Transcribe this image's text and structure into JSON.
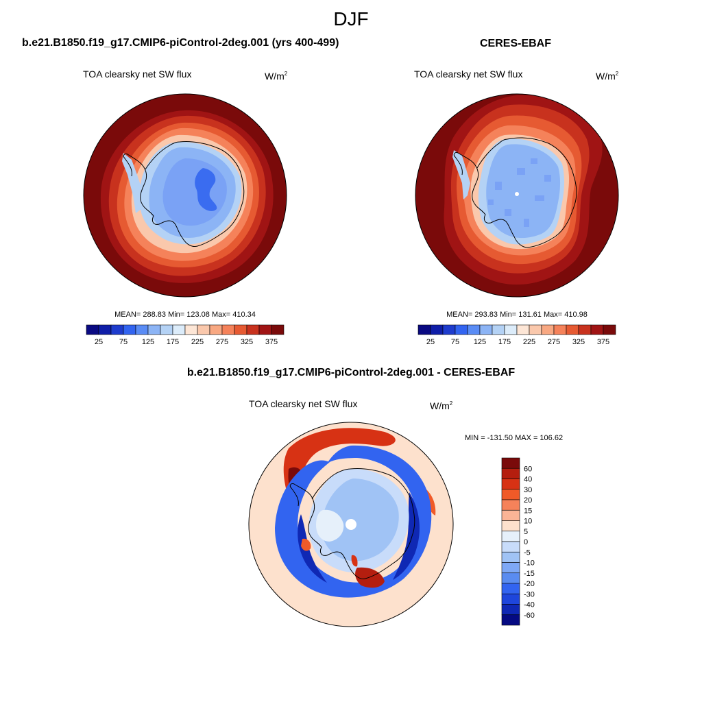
{
  "page": {
    "title": "DJF"
  },
  "panels": [
    {
      "title": "b.e21.B1850.f19_g17.CMIP6-piControl-2deg.001 (yrs 400-499)",
      "variable": "TOA clearsky net SW flux",
      "unit_base": "W/m",
      "unit_exp": "2",
      "stats": "MEAN= 288.83  Min= 123.08  Max= 410.34"
    },
    {
      "title": "CERES-EBAF",
      "variable": "TOA clearsky net SW flux",
      "unit_base": "W/m",
      "unit_exp": "2",
      "stats": "MEAN= 293.83  Min= 131.61  Max= 410.98"
    },
    {
      "title": "b.e21.B1850.f19_g17.CMIP6-piControl-2deg.001 - CERES-EBAF",
      "variable": "TOA clearsky net SW flux",
      "unit_base": "W/m",
      "unit_exp": "2",
      "stats": "MIN = -131.50 MAX = 106.62"
    }
  ],
  "colorbars": {
    "absolute": {
      "colors": [
        "#0a0a82",
        "#0f1ea8",
        "#1e3ccd",
        "#3264f0",
        "#5a8cf5",
        "#8cb4f5",
        "#b4d2f5",
        "#dcecfa",
        "#fde6d6",
        "#fac8ac",
        "#f8a882",
        "#f5825a",
        "#e65a32",
        "#c8321e",
        "#a01414",
        "#7a0a0a"
      ],
      "labels": [
        "25",
        "75",
        "125",
        "175",
        "225",
        "275",
        "325",
        "375"
      ]
    },
    "difference": {
      "colors": [
        "#7a0a0a",
        "#b41e0f",
        "#d73214",
        "#f05a28",
        "#f5825a",
        "#fab496",
        "#fde1cd",
        "#e6f0fa",
        "#c8dcfa",
        "#a0c3f5",
        "#7ea8f5",
        "#5a8cf0",
        "#3264f0",
        "#1e46dc",
        "#0f28b4",
        "#050a82"
      ],
      "labels": [
        "60",
        "40",
        "30",
        "20",
        "15",
        "10",
        "5",
        "0",
        "-5",
        "-10",
        "-15",
        "-20",
        "-30",
        "-40",
        "-60"
      ]
    }
  },
  "maps": {
    "map1": {
      "ring_colors": [
        "#7a0a0a",
        "#a01414",
        "#c8321e",
        "#e65a32",
        "#f5825a",
        "#fac8ac",
        "#fde6d6"
      ],
      "ice_colors": [
        "#b4d2f5",
        "#8cb4f5",
        "#7aa2f5",
        "#5a8cf5"
      ],
      "core": "#3a6cf0",
      "coast": "#000000"
    },
    "map2": {
      "ring_colors": [
        "#7a0a0a",
        "#a01414",
        "#c8321e",
        "#e65a32",
        "#f5825a",
        "#fac8ac",
        "#fde6d6"
      ],
      "ice_colors": [
        "#b4d2f5",
        "#8cb4f5",
        "#7aa2f5"
      ],
      "coast": "#000000"
    },
    "map3": {
      "ocean": "#fde1cd",
      "blue_band": [
        "#3264f0",
        "#1e46dc",
        "#0f28b4"
      ],
      "red": [
        "#7a0a0a",
        "#b41e0f",
        "#d73214",
        "#f05a28"
      ],
      "interior": [
        "#c8dcfa",
        "#a0c3f5",
        "#e6f0fa"
      ],
      "coast": "#000000"
    }
  }
}
